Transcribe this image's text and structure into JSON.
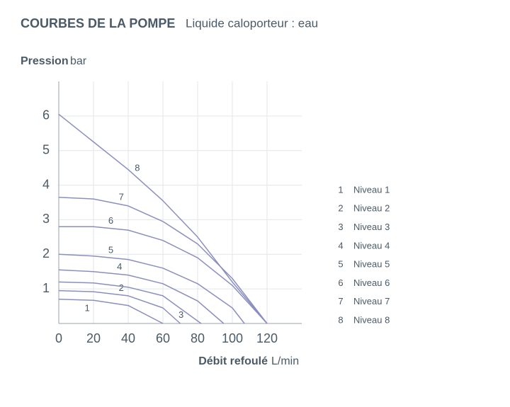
{
  "chart_data": {
    "type": "line",
    "title": "COURBES DE LA POMPE",
    "subtitle": "Liquide caloporteur : eau",
    "y_label": "Pression",
    "y_unit": "bar",
    "x_label": "Débit refoulé",
    "x_unit": "L/min",
    "xlim": [
      0,
      140
    ],
    "ylim": [
      0,
      7
    ],
    "xticks": [
      0,
      20,
      40,
      60,
      80,
      100,
      120
    ],
    "yticks": [
      1,
      2,
      3,
      4,
      5,
      6
    ],
    "grid": true,
    "legend": "right",
    "series": [
      {
        "label": "1",
        "name": "Niveau 1",
        "color": "#8a8fbf",
        "x": [
          0,
          20,
          40,
          60
        ],
        "values": [
          0.7,
          0.67,
          0.52,
          0
        ]
      },
      {
        "label": "2",
        "name": "Niveau 2",
        "color": "#8a8fbf",
        "x": [
          0,
          20,
          40,
          60,
          70
        ],
        "values": [
          0.95,
          0.92,
          0.8,
          0.45,
          0
        ]
      },
      {
        "label": "3",
        "name": "Niveau 3",
        "color": "#8a8fbf",
        "x": [
          0,
          20,
          40,
          60,
          82
        ],
        "values": [
          1.2,
          1.17,
          1.05,
          0.8,
          0
        ]
      },
      {
        "label": "4",
        "name": "Niveau 4",
        "color": "#8a8fbf",
        "x": [
          0,
          20,
          40,
          60,
          80,
          95
        ],
        "values": [
          1.55,
          1.5,
          1.4,
          1.15,
          0.65,
          0
        ]
      },
      {
        "label": "5",
        "name": "Niveau 5",
        "color": "#8a8fbf",
        "x": [
          0,
          20,
          40,
          60,
          80,
          100,
          107
        ],
        "values": [
          2.0,
          1.95,
          1.85,
          1.6,
          1.15,
          0.45,
          0
        ]
      },
      {
        "label": "6",
        "name": "Niveau 6",
        "color": "#8a8fbf",
        "x": [
          0,
          20,
          40,
          60,
          80,
          100,
          120
        ],
        "values": [
          2.8,
          2.8,
          2.7,
          2.4,
          1.9,
          1.1,
          0
        ]
      },
      {
        "label": "7",
        "name": "Niveau 7",
        "color": "#8a8fbf",
        "x": [
          0,
          20,
          40,
          60,
          80,
          100,
          120
        ],
        "values": [
          3.65,
          3.6,
          3.4,
          2.95,
          2.3,
          1.3,
          0
        ]
      },
      {
        "label": "8",
        "name": "Niveau 8",
        "color": "#8a8fbf",
        "x": [
          0,
          20,
          40,
          60,
          80,
          100,
          120
        ],
        "values": [
          6.05,
          5.25,
          4.45,
          3.55,
          2.5,
          1.2,
          0
        ]
      }
    ]
  }
}
